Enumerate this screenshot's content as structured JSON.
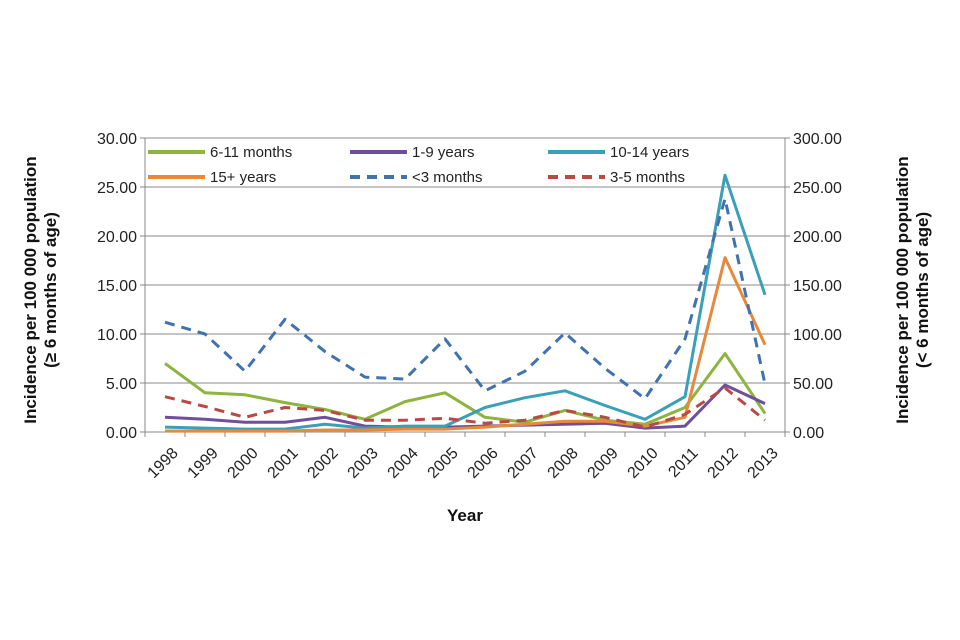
{
  "chart_data": {
    "type": "line",
    "xlabel": "Year",
    "ylabel_left": [
      "Incidence per 100 000 population",
      "(≥ 6 months of age)"
    ],
    "ylabel_right": [
      "Incidence per 100 000 population",
      "(< 6 months of age)"
    ],
    "ylim_left": [
      0,
      30
    ],
    "ylim_right": [
      0,
      300
    ],
    "yticks_left": [
      "0.00",
      "5.00",
      "10.00",
      "15.00",
      "20.00",
      "25.00",
      "30.00"
    ],
    "yticks_right": [
      "0.00",
      "50.00",
      "100.00",
      "150.00",
      "200.00",
      "250.00",
      "300.00"
    ],
    "categories": [
      "1998",
      "1999",
      "2000",
      "2001",
      "2002",
      "2003",
      "2004",
      "2005",
      "2006",
      "2007",
      "2008",
      "2009",
      "2010",
      "2011",
      "2012",
      "2013"
    ],
    "grid": true,
    "legend_position": "top",
    "series": [
      {
        "name": "6-11 months",
        "axis": "left",
        "color": "#8cb43e",
        "dash": false,
        "values": [
          7.0,
          4.0,
          3.8,
          3.0,
          2.3,
          1.3,
          3.1,
          4.0,
          1.5,
          1.0,
          2.2,
          1.2,
          0.8,
          2.5,
          8.0,
          1.9
        ]
      },
      {
        "name": "1-9 years",
        "axis": "left",
        "color": "#6f4e9b",
        "dash": false,
        "values": [
          1.5,
          1.3,
          1.0,
          1.0,
          1.5,
          0.6,
          0.5,
          0.5,
          0.6,
          0.7,
          0.8,
          0.9,
          0.4,
          0.6,
          4.8,
          2.9
        ]
      },
      {
        "name": "10-14 years",
        "axis": "left",
        "color": "#3a9fb8",
        "dash": false,
        "values": [
          0.5,
          0.4,
          0.3,
          0.3,
          0.8,
          0.4,
          0.6,
          0.6,
          2.5,
          3.5,
          4.2,
          2.7,
          1.3,
          3.6,
          26.2,
          14.0
        ]
      },
      {
        "name": "15+ years",
        "axis": "left",
        "color": "#e8883a",
        "dash": false,
        "values": [
          0.1,
          0.1,
          0.1,
          0.1,
          0.2,
          0.2,
          0.3,
          0.3,
          0.5,
          0.8,
          1.1,
          1.1,
          0.6,
          1.5,
          17.8,
          8.9
        ]
      },
      {
        "name": "<3 months",
        "axis": "right",
        "color": "#3f72ae",
        "dash": true,
        "values": [
          112,
          100,
          62,
          115,
          82,
          56,
          54,
          95,
          42,
          62,
          101,
          65,
          34,
          95,
          238,
          49
        ]
      },
      {
        "name": "3-5 months",
        "axis": "right",
        "color": "#b84a44",
        "dash": true,
        "values": [
          36,
          26,
          15,
          25,
          22,
          12,
          12,
          14,
          9,
          12,
          22,
          15,
          5,
          18,
          45,
          12
        ]
      }
    ]
  }
}
